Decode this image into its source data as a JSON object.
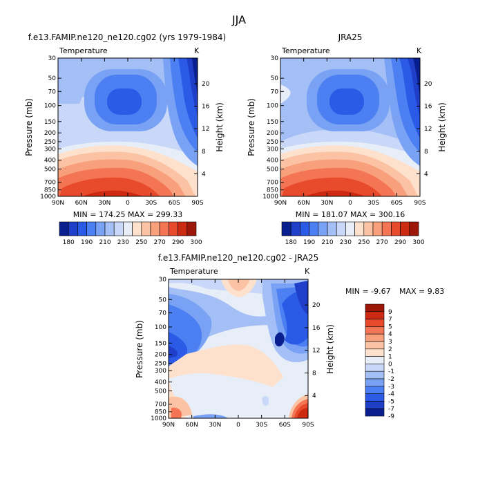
{
  "figure": {
    "title": "JJA"
  },
  "panels": {
    "model": {
      "title": "f.e13.FAMIP.ne120_ne120.cg02 (yrs 1979-1984)",
      "subtitle": "Temperature",
      "units": "K",
      "ylabel": "Pressure (mb)",
      "ylabel_right": "Height (km)",
      "stats": "MIN = 174.25   MAX = 299.33"
    },
    "obs": {
      "title": "JRA25",
      "subtitle": "Temperature",
      "units": "K",
      "ylabel": "Pressure (mb)",
      "ylabel_right": "Height (km)",
      "stats": "MIN = 181.07   MAX = 300.16"
    },
    "diff": {
      "title": "f.e13.FAMIP.ne120_ne120.cg02 - JRA25",
      "subtitle": "Temperature",
      "units": "K",
      "ylabel": "Pressure (mb)",
      "ylabel_right": "Height (km)",
      "stats_min": "MIN =   -9.67",
      "stats_max": "MAX =    9.83"
    }
  },
  "chart_data": [
    {
      "type": "heatmap",
      "title": "f.e13.FAMIP.ne120_ne120.cg02 (yrs 1979-1984)",
      "subtitle": "Temperature",
      "units": "K",
      "x_ticks": [
        "90N",
        "60N",
        "30N",
        "0",
        "30S",
        "60S",
        "90S"
      ],
      "x_values": [
        90,
        60,
        30,
        0,
        -30,
        -60,
        -90
      ],
      "y_ticks": [
        "30",
        "50",
        "70",
        "100",
        "150",
        "200",
        "250",
        "300",
        "400",
        "500",
        "700",
        "850",
        "1000"
      ],
      "y_values": [
        30,
        50,
        70,
        100,
        150,
        200,
        250,
        300,
        400,
        500,
        700,
        850,
        1000
      ],
      "ylim": [
        1000,
        30
      ],
      "y_scale": "log",
      "y_right_ticks": [
        "4",
        "8",
        "12",
        "16",
        "20"
      ],
      "y_right_values": [
        4,
        8,
        12,
        16,
        20
      ],
      "colorbar_labels": [
        "180",
        "190",
        "210",
        "230",
        "250",
        "270",
        "290",
        "300"
      ],
      "min": 174.25,
      "max": 299.33
    },
    {
      "type": "heatmap",
      "title": "JRA25",
      "subtitle": "Temperature",
      "units": "K",
      "x_ticks": [
        "90N",
        "60N",
        "30N",
        "0",
        "30S",
        "60S",
        "90S"
      ],
      "x_values": [
        90,
        60,
        30,
        0,
        -30,
        -60,
        -90
      ],
      "y_ticks": [
        "30",
        "50",
        "70",
        "100",
        "150",
        "200",
        "250",
        "300",
        "400",
        "500",
        "700",
        "850",
        "1000"
      ],
      "y_values": [
        30,
        50,
        70,
        100,
        150,
        200,
        250,
        300,
        400,
        500,
        700,
        850,
        1000
      ],
      "ylim": [
        1000,
        30
      ],
      "y_scale": "log",
      "y_right_ticks": [
        "4",
        "8",
        "12",
        "16",
        "20"
      ],
      "y_right_values": [
        4,
        8,
        12,
        16,
        20
      ],
      "colorbar_labels": [
        "180",
        "190",
        "210",
        "230",
        "250",
        "270",
        "290",
        "300"
      ],
      "min": 181.07,
      "max": 300.16
    },
    {
      "type": "heatmap",
      "title": "f.e13.FAMIP.ne120_ne120.cg02 - JRA25",
      "subtitle": "Temperature",
      "units": "K",
      "x_ticks": [
        "90N",
        "60N",
        "30N",
        "0",
        "30S",
        "60S",
        "90S"
      ],
      "x_values": [
        90,
        60,
        30,
        0,
        -30,
        -60,
        -90
      ],
      "y_ticks": [
        "30",
        "50",
        "70",
        "100",
        "150",
        "200",
        "250",
        "300",
        "400",
        "500",
        "700",
        "850",
        "1000"
      ],
      "y_values": [
        30,
        50,
        70,
        100,
        150,
        200,
        250,
        300,
        400,
        500,
        700,
        850,
        1000
      ],
      "ylim": [
        1000,
        30
      ],
      "y_scale": "log",
      "y_right_ticks": [
        "4",
        "8",
        "12",
        "16",
        "20"
      ],
      "y_right_values": [
        4,
        8,
        12,
        16,
        20
      ],
      "colorbar_labels": [
        "9",
        "7",
        "5",
        "4",
        "3",
        "2",
        "1",
        "0",
        "-1",
        "-2",
        "-3",
        "-4",
        "-5",
        "-7",
        "-9"
      ],
      "colorbar_orientation": "vertical",
      "min": -9.67,
      "max": 9.83
    }
  ],
  "colors": {
    "temp_palette": [
      "#0a1f8f",
      "#1f3fc8",
      "#2a5ae6",
      "#4c7ff2",
      "#7aa2f4",
      "#a3bff6",
      "#c9d8f8",
      "#e8eef8",
      "#fde1cd",
      "#fbc3a4",
      "#f89f7c",
      "#f37553",
      "#e84a2c",
      "#cc2a12",
      "#9c1708"
    ],
    "diff_palette": [
      "#0a1f8f",
      "#1f3fc8",
      "#2a5ae6",
      "#4c7ff2",
      "#7aa2f4",
      "#a3bff6",
      "#c9d8f8",
      "#e8eef8",
      "#fde1cd",
      "#fbc3a4",
      "#f89f7c",
      "#f37553",
      "#e84a2c",
      "#cc2a12",
      "#9c1708"
    ]
  }
}
